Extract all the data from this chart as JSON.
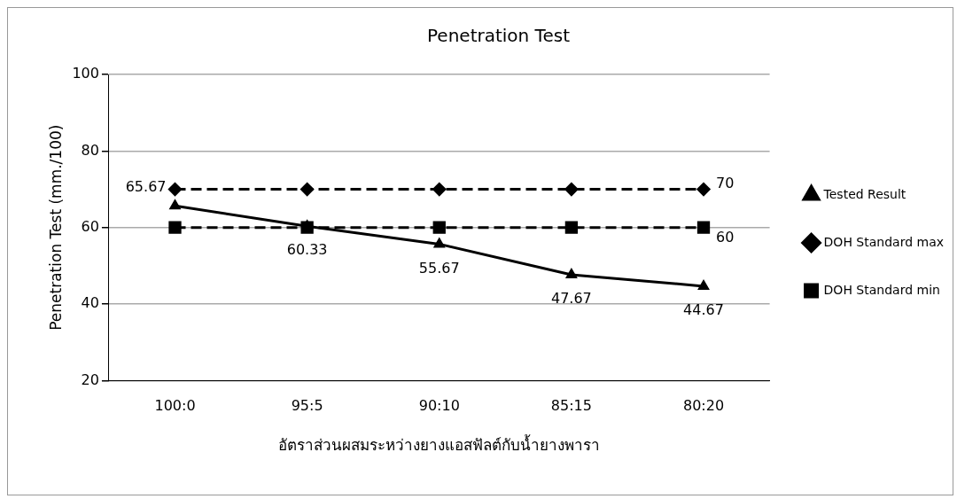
{
  "chart_data": {
    "type": "line",
    "title": "Penetration Test",
    "xlabel": "อัตราส่วนผสมระหว่างยางแอสฟัลต์กับน้ำยางพารา",
    "ylabel": "Penetration Test (mm./100)",
    "categories": [
      "100:0",
      "95:5",
      "90:10",
      "85:15",
      "80:20"
    ],
    "ylim": [
      20,
      100
    ],
    "yticks": [
      20,
      40,
      60,
      80,
      100
    ],
    "grid": "y",
    "legend": "right",
    "series": [
      {
        "name": "Tested Result",
        "color": "#000000",
        "values": [
          65.67,
          60.33,
          55.67,
          47.67,
          44.67
        ],
        "marker": "triangle",
        "line_style": "solid",
        "value_labels": [
          "65.67",
          "60.33",
          "55.67",
          "47.67",
          "44.67"
        ]
      },
      {
        "name": "DOH Standard max",
        "color": "#000000",
        "values": [
          70,
          70,
          70,
          70,
          70
        ],
        "marker": "diamond",
        "line_style": "dashed",
        "value_labels": [
          null,
          null,
          null,
          null,
          "70"
        ]
      },
      {
        "name": "DOH Standard min",
        "color": "#000000",
        "values": [
          60,
          60,
          60,
          60,
          60
        ],
        "marker": "square",
        "line_style": "dashed",
        "value_labels": [
          null,
          null,
          null,
          null,
          "60"
        ]
      }
    ]
  }
}
